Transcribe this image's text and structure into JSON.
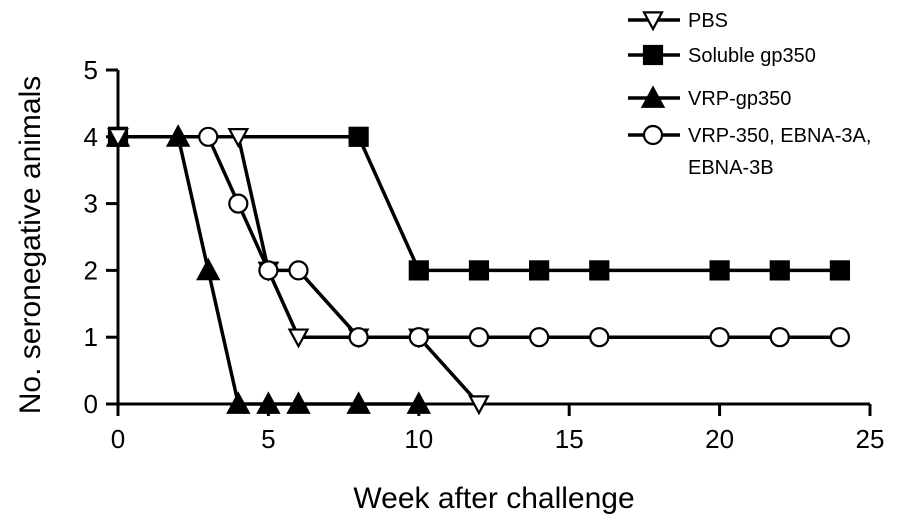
{
  "chart_data": {
    "type": "line",
    "title": "",
    "xlabel": "Week after challenge",
    "ylabel": "No. seronegative animals",
    "xlim": [
      0,
      25
    ],
    "ylim": [
      0,
      5
    ],
    "xticks": [
      0,
      5,
      10,
      15,
      20,
      25
    ],
    "yticks": [
      0,
      1,
      2,
      3,
      4,
      5
    ],
    "grid": false,
    "legend_position": "top-right",
    "series": [
      {
        "name": "PBS",
        "marker": "triangle-down-open",
        "x": [
          0,
          4,
          5,
          6,
          8,
          10,
          12
        ],
        "y": [
          4,
          4,
          2,
          1,
          1,
          1,
          0
        ]
      },
      {
        "name": "Soluble gp350",
        "marker": "square-filled",
        "x": [
          0,
          8,
          10,
          12,
          14,
          16,
          20,
          22,
          24
        ],
        "y": [
          4,
          4,
          2,
          2,
          2,
          2,
          2,
          2,
          2
        ]
      },
      {
        "name": "VRP-gp350",
        "marker": "triangle-up-filled",
        "x": [
          0,
          2,
          3,
          4,
          5,
          6,
          8,
          10
        ],
        "y": [
          4,
          4,
          2,
          0,
          0,
          0,
          0,
          0
        ]
      },
      {
        "name": [
          "VRP-350, EBNA-3A,",
          "EBNA-3B"
        ],
        "marker": "circle-open",
        "x": [
          3,
          4,
          5,
          6,
          8,
          10,
          12,
          14,
          16,
          20,
          22,
          24
        ],
        "y": [
          4,
          3,
          2,
          2,
          1,
          1,
          1,
          1,
          1,
          1,
          1,
          1
        ]
      }
    ]
  }
}
